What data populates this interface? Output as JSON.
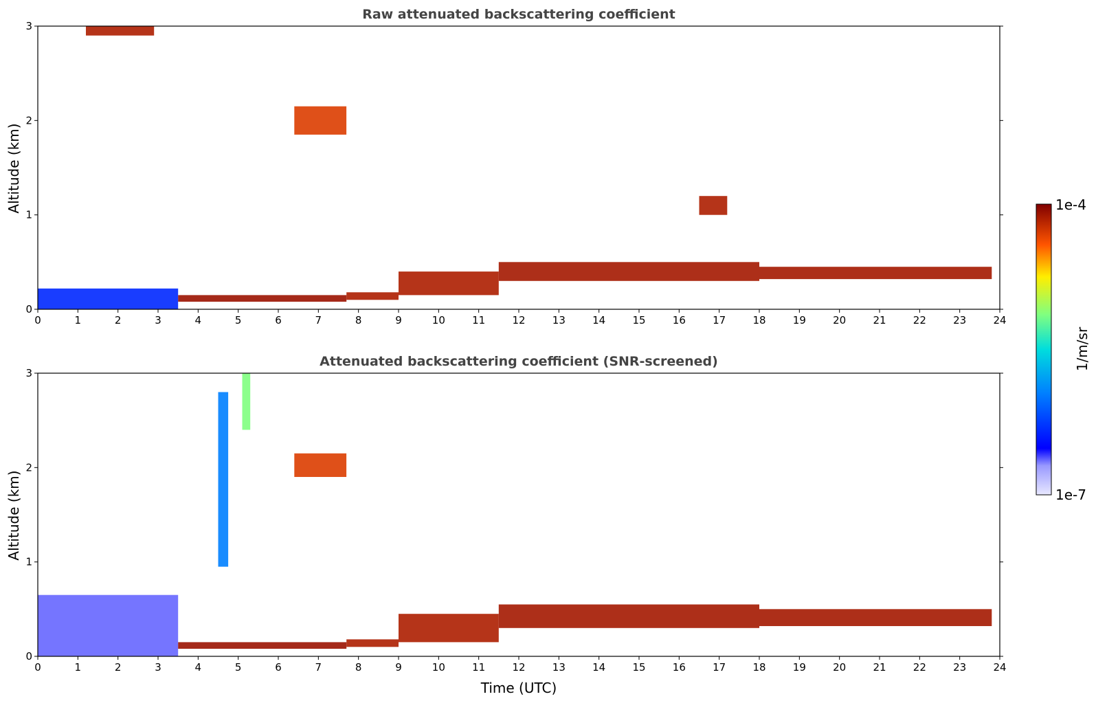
{
  "chart_data": [
    {
      "type": "heatmap",
      "title": "Raw attenuated backscattering coefficient",
      "xlabel": "",
      "ylabel": "Altitude (km)",
      "xlim": [
        0,
        24
      ],
      "ylim": [
        0,
        3
      ],
      "xticks": [
        "0",
        "1",
        "2",
        "3",
        "4",
        "5",
        "6",
        "7",
        "8",
        "9",
        "10",
        "11",
        "12",
        "13",
        "14",
        "15",
        "16",
        "17",
        "18",
        "19",
        "20",
        "21",
        "22",
        "23",
        "24"
      ],
      "yticks": [
        "0",
        "1",
        "2",
        "3"
      ],
      "grid": false,
      "layers": [
        {
          "x": [
            0,
            3.5
          ],
          "y": [
            0,
            0.22
          ],
          "level": 0.22
        },
        {
          "x": [
            3.5,
            7.7
          ],
          "y": [
            0.08,
            0.15
          ],
          "level": 0.97
        },
        {
          "x": [
            7.7,
            9.0
          ],
          "y": [
            0.1,
            0.18
          ],
          "level": 0.95
        },
        {
          "x": [
            9.0,
            11.5
          ],
          "y": [
            0.15,
            0.4
          ],
          "level": 0.95
        },
        {
          "x": [
            11.5,
            18.0
          ],
          "y": [
            0.3,
            0.5
          ],
          "level": 0.96
        },
        {
          "x": [
            18.0,
            23.8
          ],
          "y": [
            0.32,
            0.45
          ],
          "level": 0.96
        },
        {
          "x": [
            6.4,
            7.7
          ],
          "y": [
            1.85,
            2.15
          ],
          "level": 0.9
        },
        {
          "x": [
            16.5,
            17.2
          ],
          "y": [
            1.0,
            1.2
          ],
          "level": 0.95
        },
        {
          "x": [
            1.2,
            2.9
          ],
          "y": [
            2.9,
            3.0
          ],
          "level": 0.95
        }
      ]
    },
    {
      "type": "heatmap",
      "title": "Attenuated backscattering coefficient (SNR-screened)",
      "xlabel": "Time (UTC)",
      "ylabel": "Altitude (km)",
      "xlim": [
        0,
        24
      ],
      "ylim": [
        0,
        3
      ],
      "xticks": [
        "0",
        "1",
        "2",
        "3",
        "4",
        "5",
        "6",
        "7",
        "8",
        "9",
        "10",
        "11",
        "12",
        "13",
        "14",
        "15",
        "16",
        "17",
        "18",
        "19",
        "20",
        "21",
        "22",
        "23",
        "24"
      ],
      "yticks": [
        "0",
        "1",
        "2",
        "3"
      ],
      "grid": false,
      "layers": [
        {
          "x": [
            0,
            3.5
          ],
          "y": [
            0,
            0.65
          ],
          "level": 0.12
        },
        {
          "x": [
            3.5,
            7.7
          ],
          "y": [
            0.08,
            0.15
          ],
          "level": 0.97
        },
        {
          "x": [
            7.7,
            9.0
          ],
          "y": [
            0.1,
            0.18
          ],
          "level": 0.95
        },
        {
          "x": [
            9.0,
            11.5
          ],
          "y": [
            0.15,
            0.45
          ],
          "level": 0.95
        },
        {
          "x": [
            11.5,
            18.0
          ],
          "y": [
            0.3,
            0.55
          ],
          "level": 0.96
        },
        {
          "x": [
            18.0,
            23.8
          ],
          "y": [
            0.32,
            0.5
          ],
          "level": 0.96
        },
        {
          "x": [
            5.1,
            5.3
          ],
          "y": [
            2.4,
            3.0
          ],
          "level": 0.62
        },
        {
          "x": [
            4.5,
            4.75
          ],
          "y": [
            0.95,
            2.8
          ],
          "level": 0.35
        },
        {
          "x": [
            6.4,
            7.7
          ],
          "y": [
            1.9,
            2.15
          ],
          "level": 0.9
        }
      ]
    }
  ],
  "colorbar": {
    "label": "1/m/sr",
    "max_label": "1e-4",
    "min_label": "1e-7",
    "range": [
      1e-07,
      0.0001
    ],
    "scale": "log",
    "colormap": "jet"
  }
}
